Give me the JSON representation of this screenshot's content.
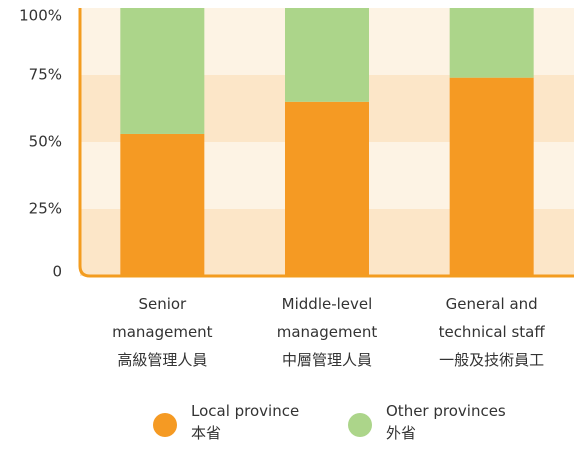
{
  "chart_data": {
    "type": "stacked_bar",
    "categories": [
      "Senior\nmanagement\n高級管理人員",
      "Middle-level\nmanagement\n中層管理人員",
      "General and\ntechnical staff\n一般及技術員工"
    ],
    "series": [
      {
        "name": "Local province\n本省",
        "color": "#f59a23",
        "values": [
          53,
          65,
          74
        ]
      },
      {
        "name": "Other provinces\n外省",
        "color": "#acd58a",
        "values": [
          47,
          35,
          26
        ]
      }
    ],
    "ylim": [
      0,
      100
    ],
    "yticks": [
      0,
      {
        "value": 25,
        "label": "25%"
      },
      {
        "value": 50,
        "label": "50%"
      },
      {
        "value": 75,
        "label": "75%"
      },
      {
        "value": 100,
        "label": "100%"
      }
    ]
  }
}
